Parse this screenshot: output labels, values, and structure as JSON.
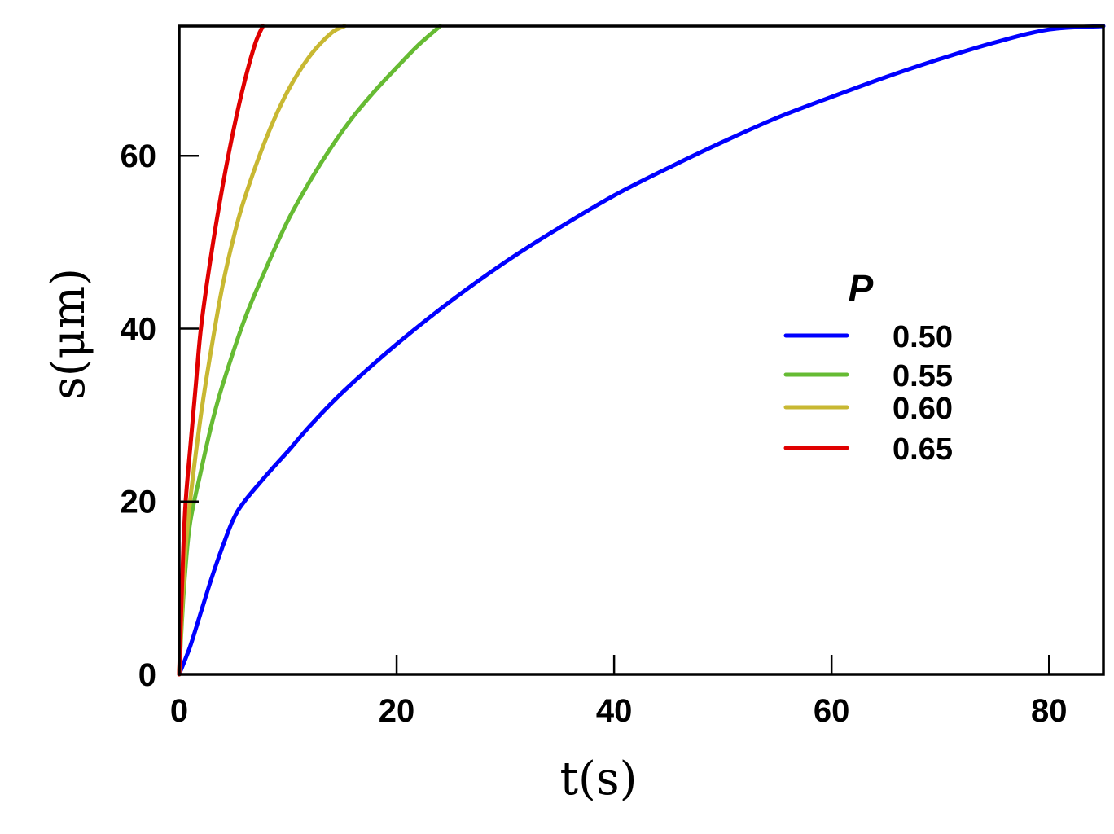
{
  "chart_data": {
    "type": "line",
    "xlabel": "t(s)",
    "ylabel": "s(μm)",
    "xlim": [
      0,
      85
    ],
    "ylim": [
      0,
      75
    ],
    "xticks": [
      0,
      20,
      40,
      60,
      80
    ],
    "yticks": [
      0,
      20,
      40,
      60
    ],
    "grid": false,
    "legend": {
      "title": "P",
      "placement": "right"
    },
    "series": [
      {
        "name": "0.50",
        "color": "#0000ff",
        "x": [
          0,
          1,
          2,
          3,
          4,
          5,
          6,
          8,
          10,
          12,
          15,
          20,
          25,
          30,
          35,
          40,
          45,
          50,
          55,
          60,
          65,
          70,
          75,
          80,
          85
        ],
        "y": [
          0,
          3.2,
          7.2,
          11.2,
          14.8,
          18,
          20,
          23,
          25.8,
          28.7,
          32.6,
          38.2,
          43.2,
          47.7,
          51.7,
          55.4,
          58.6,
          61.6,
          64.4,
          66.8,
          69.1,
          71.2,
          73.1,
          74.6,
          75
        ]
      },
      {
        "name": "0.55",
        "color": "#66bb33",
        "x": [
          0,
          0.25,
          0.5,
          1,
          2,
          3,
          4,
          6,
          8,
          10,
          12,
          14,
          16,
          18,
          20,
          22,
          24
        ],
        "y": [
          0,
          6,
          11,
          17.5,
          23.5,
          29,
          33.5,
          41,
          47,
          52.5,
          57,
          61,
          64.5,
          67.5,
          70.2,
          72.8,
          75
        ]
      },
      {
        "name": "0.60",
        "color": "#c8b832",
        "x": [
          0,
          0.25,
          0.5,
          1,
          2,
          3,
          4,
          5,
          6,
          8,
          10,
          12,
          14,
          15.2
        ],
        "y": [
          0,
          7,
          13,
          20,
          30,
          38,
          45,
          50.5,
          55,
          62,
          67.5,
          71.5,
          74.2,
          75
        ]
      },
      {
        "name": "0.65",
        "color": "#e00000",
        "x": [
          0,
          0.2,
          0.4,
          0.6,
          1,
          1.5,
          2,
          3,
          4,
          5,
          6,
          7,
          7.7
        ],
        "y": [
          0,
          8,
          15,
          20,
          26,
          33,
          40,
          49,
          56.5,
          63,
          68.5,
          73,
          75
        ]
      }
    ]
  }
}
